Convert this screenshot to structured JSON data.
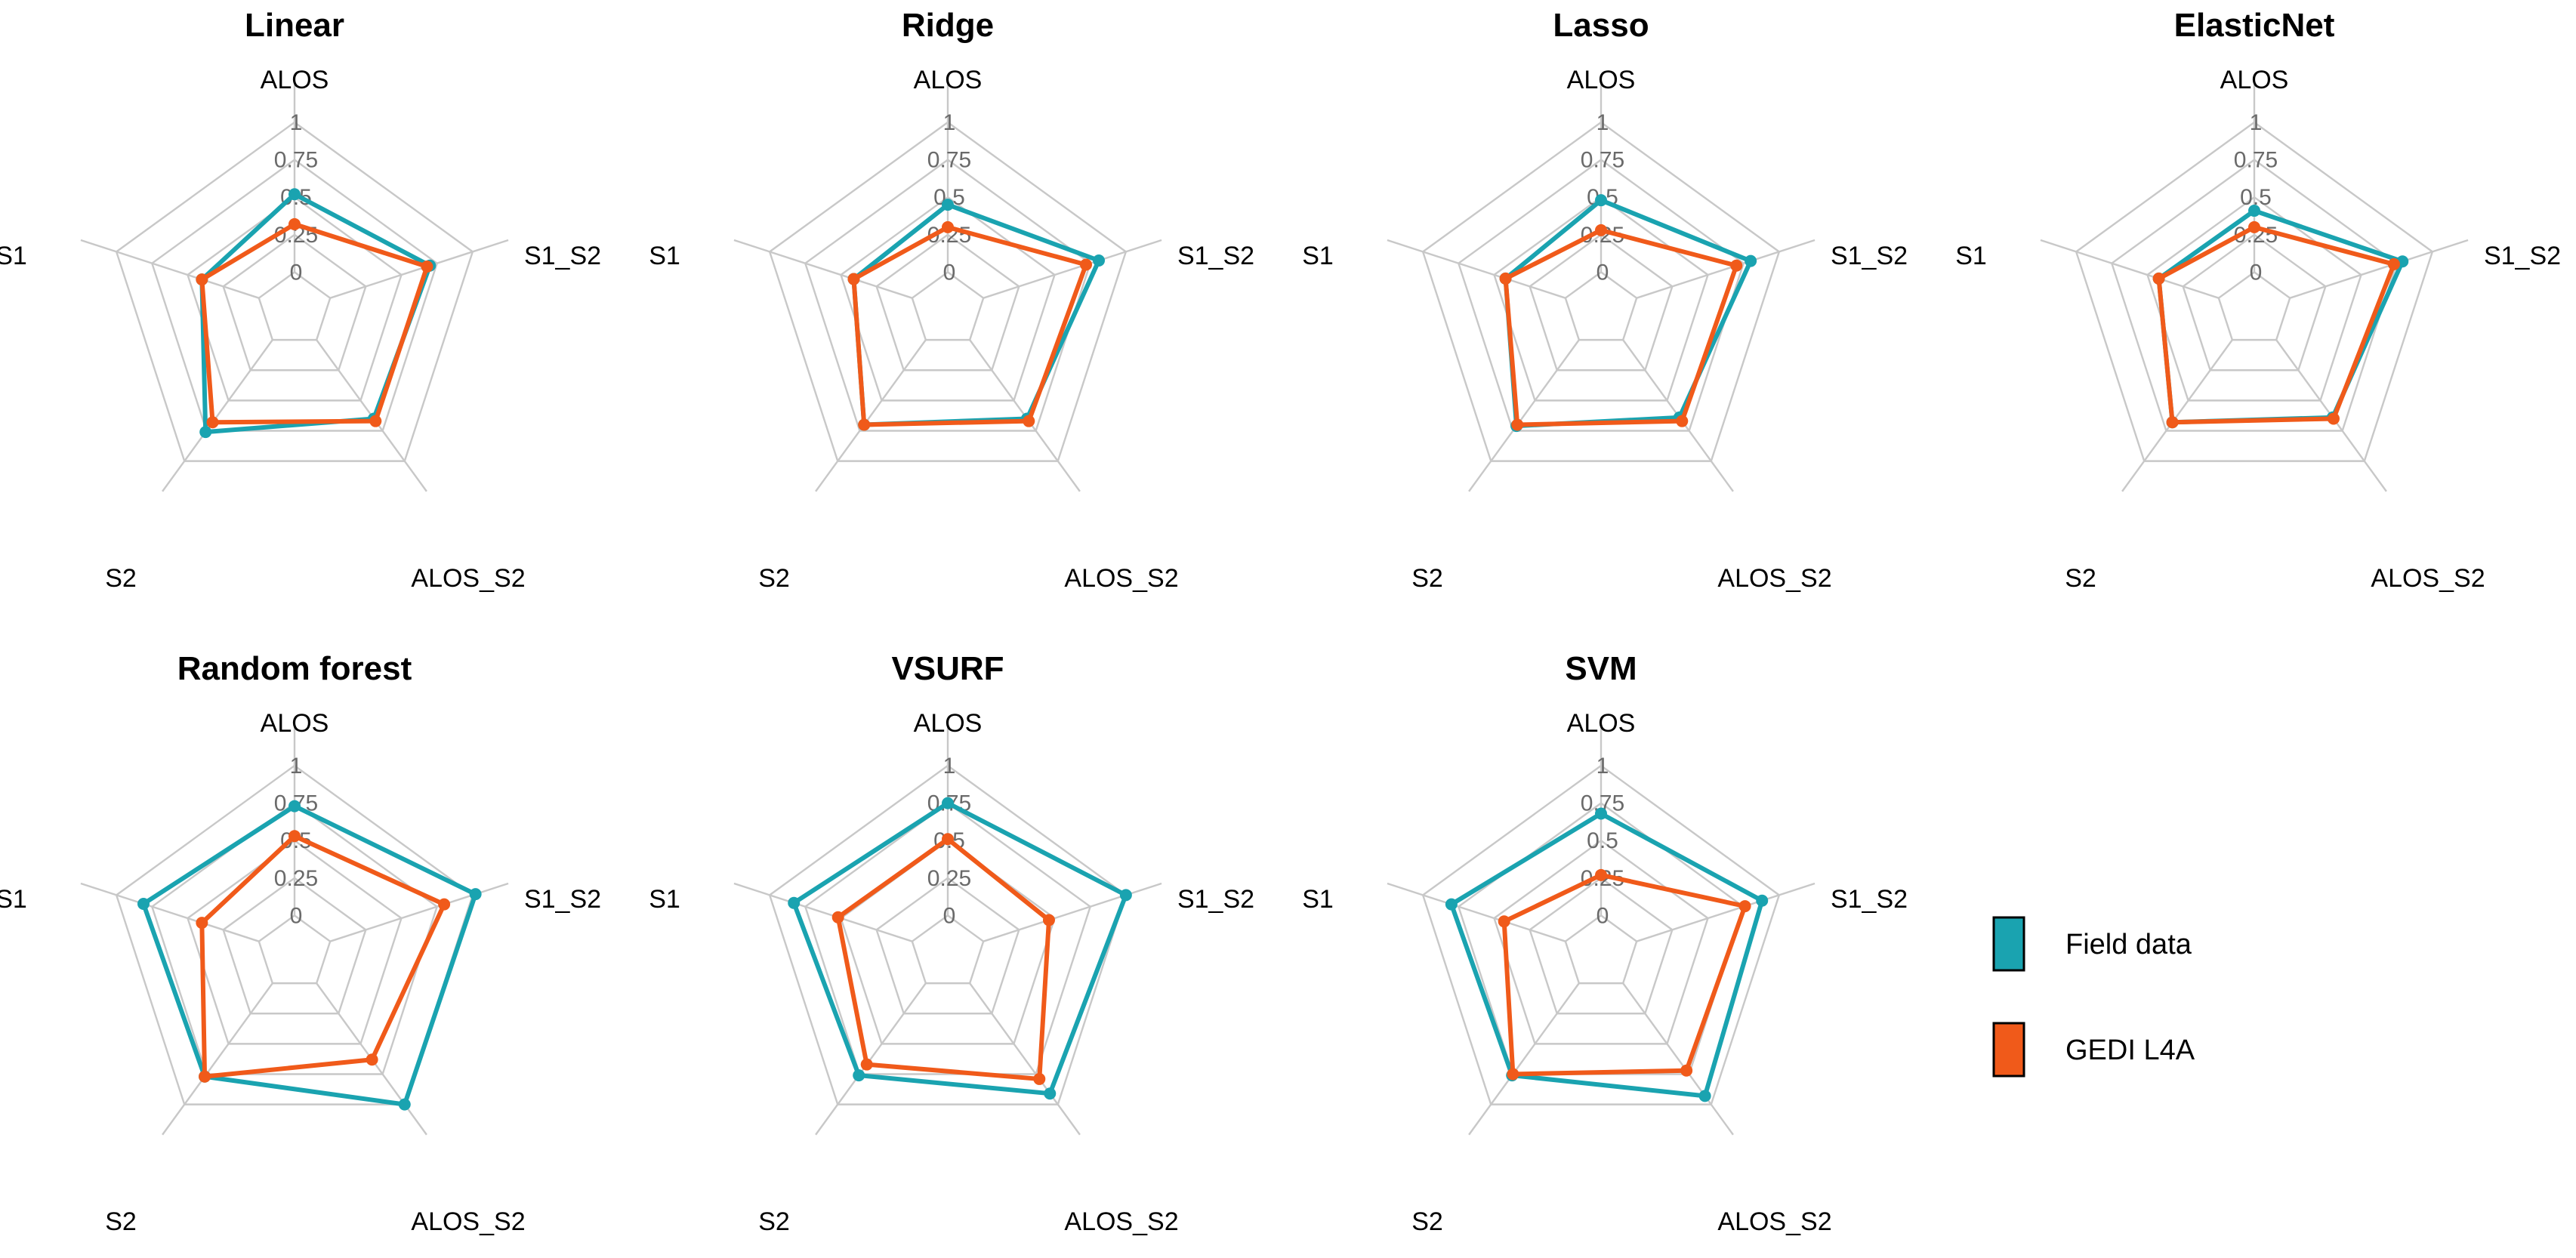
{
  "chart_data": {
    "type": "radar",
    "axes": [
      "ALOS",
      "S1_S2",
      "ALOS_S2",
      "S2",
      "S1"
    ],
    "ticks": [
      "0",
      "0.25",
      "0.5",
      "0.75",
      "1"
    ],
    "range": [
      0,
      1
    ],
    "legend": [
      {
        "name": "Field data",
        "color": "#1aa3b0"
      },
      {
        "name": "GEDI L4A",
        "color": "#f05a1a"
      }
    ],
    "panels": [
      {
        "title": "Linear",
        "series": [
          {
            "name": "Field data",
            "values": [
              0.52,
              0.7,
              0.65,
              0.76,
              0.4
            ]
          },
          {
            "name": "GEDI L4A",
            "values": [
              0.32,
              0.68,
              0.67,
              0.68,
              0.4
            ]
          }
        ]
      },
      {
        "title": "Ridge",
        "series": [
          {
            "name": "Field data",
            "values": [
              0.45,
              0.81,
              0.65,
              0.7,
              0.41
            ]
          },
          {
            "name": "GEDI L4A",
            "values": [
              0.3,
              0.72,
              0.67,
              0.7,
              0.41
            ]
          }
        ]
      },
      {
        "title": "Lasso",
        "series": [
          {
            "name": "Field data",
            "values": [
              0.48,
              0.8,
              0.64,
              0.71,
              0.42
            ]
          },
          {
            "name": "GEDI L4A",
            "values": [
              0.28,
              0.7,
              0.67,
              0.7,
              0.42
            ]
          }
        ]
      },
      {
        "title": "ElasticNet",
        "series": [
          {
            "name": "Field data",
            "values": [
              0.41,
              0.79,
              0.64,
              0.68,
              0.42
            ]
          },
          {
            "name": "GEDI L4A",
            "values": [
              0.3,
              0.73,
              0.65,
              0.68,
              0.42
            ]
          }
        ]
      },
      {
        "title": "Random forest",
        "series": [
          {
            "name": "Field data",
            "values": [
              0.73,
              1.02,
              1.0,
              0.77,
              0.81
            ]
          },
          {
            "name": "GEDI L4A",
            "values": [
              0.53,
              0.8,
              0.63,
              0.77,
              0.4
            ]
          }
        ]
      },
      {
        "title": "VSURF",
        "series": [
          {
            "name": "Field data",
            "values": [
              0.75,
              1.0,
              0.91,
              0.76,
              0.83
            ]
          },
          {
            "name": "GEDI L4A",
            "values": [
              0.51,
              0.46,
              0.79,
              0.67,
              0.52
            ]
          }
        ]
      },
      {
        "title": "SVM",
        "series": [
          {
            "name": "Field data",
            "values": [
              0.68,
              0.88,
              0.93,
              0.76,
              0.8
            ]
          },
          {
            "name": "GEDI L4A",
            "values": [
              0.27,
              0.76,
              0.72,
              0.75,
              0.43
            ]
          }
        ]
      }
    ]
  }
}
